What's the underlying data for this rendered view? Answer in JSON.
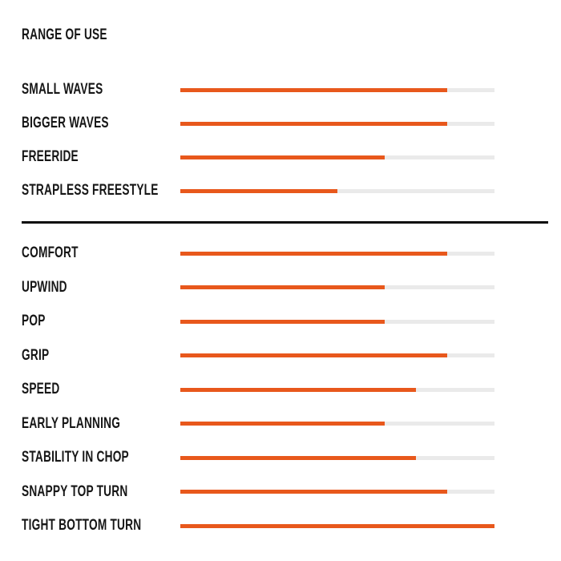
{
  "title": "RANGE OF USE",
  "colors": {
    "accent_orange": "#E8581C",
    "track_gray": "#EAEAEA",
    "text_black": "#161616",
    "divider_black": "#0A0A0A",
    "background": "#FFFFFF"
  },
  "chart_data": {
    "type": "bar",
    "orientation": "horizontal",
    "title": "RANGE OF USE",
    "value_scale": {
      "min": 0,
      "max": 100,
      "unit": "percent-of-track"
    },
    "grid": false,
    "legend": false,
    "sections": [
      {
        "rows": [
          {
            "label": "SMALL WAVES",
            "value": 85
          },
          {
            "label": "BIGGER WAVES",
            "value": 85
          },
          {
            "label": "FREERIDE",
            "value": 65
          },
          {
            "label": "STRAPLESS FREESTYLE",
            "value": 50
          }
        ]
      },
      {
        "rows": [
          {
            "label": "COMFORT",
            "value": 85
          },
          {
            "label": "UPWIND",
            "value": 65
          },
          {
            "label": "POP",
            "value": 65
          },
          {
            "label": "GRIP",
            "value": 85
          },
          {
            "label": "SPEED",
            "value": 75
          },
          {
            "label": "EARLY PLANNING",
            "value": 65
          },
          {
            "label": "STABILITY IN CHOP",
            "value": 75
          },
          {
            "label": "SNAPPY TOP TURN",
            "value": 85
          },
          {
            "label": "TIGHT BOTTOM TURN",
            "value": 100
          }
        ]
      }
    ]
  }
}
